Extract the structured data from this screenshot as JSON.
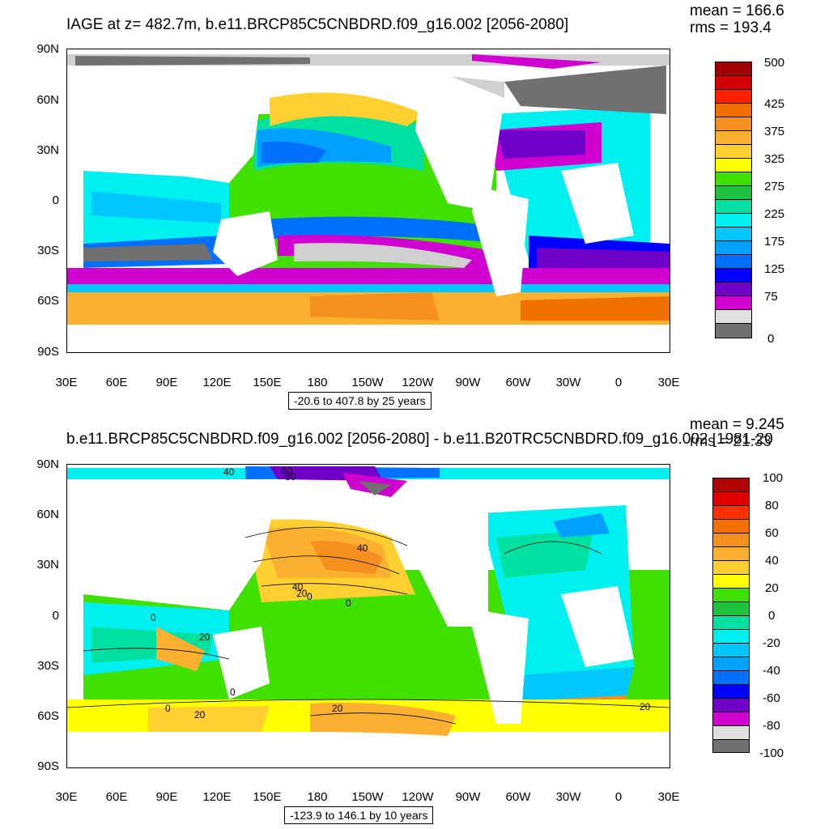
{
  "panels": [
    {
      "title": "IAGE at z= 482.7m, b.e11.BRCP85C5CNBDRD.f09_g16.002 [2056-2080]",
      "mean": "mean = 166.6",
      "rms": "rms = 193.4",
      "range": "-20.6 to 407.8 by 25 years",
      "lat_labels": [
        "90N",
        "60N",
        "30N",
        "0",
        "30S",
        "60S",
        "90S"
      ],
      "lon_labels": [
        "30E",
        "60E",
        "90E",
        "120E",
        "150E",
        "180",
        "150W",
        "120W",
        "90W",
        "60W",
        "30W",
        "0",
        "30E"
      ],
      "colorbar": {
        "labels": [
          "500",
          "425",
          "375",
          "325",
          "275",
          "225",
          "175",
          "125",
          "75",
          "0"
        ],
        "colors": [
          "#a00000",
          "#d20000",
          "#ff2000",
          "#f07000",
          "#f59020",
          "#fbb030",
          "#ffd030",
          "#ffff00",
          "#40e000",
          "#20c040",
          "#00e0a0",
          "#00f0f0",
          "#00c8ff",
          "#00a0ff",
          "#0070ff",
          "#0000ff",
          "#7000c8",
          "#d000d0",
          "#e0e0e0",
          "#707070"
        ]
      }
    },
    {
      "title": "b.e11.BRCP85C5CNBDRD.f09_g16.002 [2056-2080] - b.e11.B20TRC5CNBDRD.f09_g16.002 [1981-20",
      "mean": "mean = 9.245",
      "rms": "rms = 21.33",
      "range": "-123.9 to 146.1 by 10 years",
      "lat_labels": [
        "90N",
        "60N",
        "30N",
        "0",
        "30S",
        "60S",
        "90S"
      ],
      "lon_labels": [
        "30E",
        "60E",
        "90E",
        "120E",
        "150E",
        "180",
        "150W",
        "120W",
        "90W",
        "60W",
        "30W",
        "0",
        "30E"
      ],
      "colorbar": {
        "labels": [
          "100",
          "80",
          "60",
          "40",
          "20",
          "0",
          "-20",
          "-40",
          "-60",
          "-80",
          "-100"
        ],
        "colors": [
          "#b00000",
          "#e00000",
          "#ff3000",
          "#f07000",
          "#f59020",
          "#fbb030",
          "#ffd030",
          "#ffff00",
          "#40e000",
          "#20c040",
          "#00e0a0",
          "#00f0f0",
          "#00c8ff",
          "#00a0ff",
          "#0070ff",
          "#0000ff",
          "#7000c8",
          "#d000d0",
          "#e0e0e0",
          "#707070"
        ]
      },
      "contour_labels": [
        "40",
        "60",
        "80",
        "40",
        "40",
        "20",
        "0",
        "0",
        "0",
        "20",
        "0",
        "0",
        "20",
        "20",
        "20"
      ]
    }
  ],
  "colors": {
    "land": "#ffffff",
    "grey_dark": "#707070",
    "grey_light": "#cccccc"
  }
}
